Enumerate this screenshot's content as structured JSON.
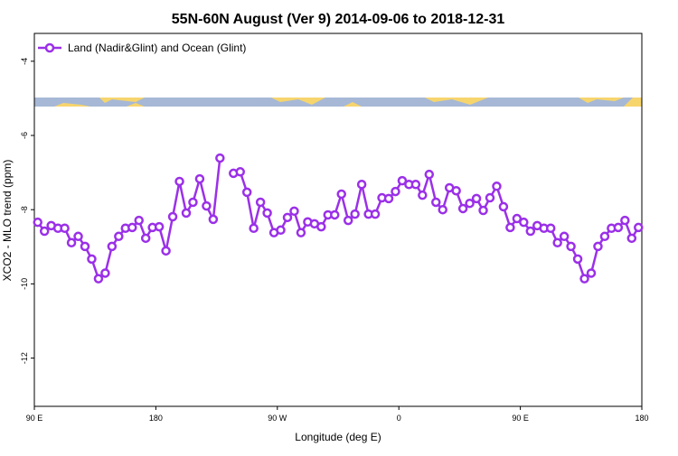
{
  "chart_data": {
    "type": "line",
    "title": "55N-60N August (Ver 9)   2014-09-06 to 2018-12-31",
    "x_label": "Longitude (deg E)",
    "y_label": "XCO2 - MLO trend (ppm)",
    "xlim": [
      90,
      540
    ],
    "ylim": [
      -13.3,
      -3.25
    ],
    "xticks": [
      {
        "value": 90,
        "label": "90 E"
      },
      {
        "value": 180,
        "label": "180"
      },
      {
        "value": 270,
        "label": "90 W"
      },
      {
        "value": 360,
        "label": "0"
      },
      {
        "value": 450,
        "label": "90 E"
      },
      {
        "value": 540,
        "label": "180"
      }
    ],
    "yticks": [
      -4,
      -6,
      -8,
      -10,
      -12
    ],
    "legend": "top-left",
    "x": [
      92.5,
      97.5,
      102.5,
      107.5,
      112.5,
      117.5,
      122.5,
      127.5,
      132.5,
      137.5,
      142.5,
      147.5,
      152.5,
      157.5,
      162.5,
      167.5,
      172.5,
      177.5,
      182.5,
      187.5,
      192.5,
      197.5,
      202.5,
      207.5,
      212.5,
      217.5,
      222.5,
      227.5,
      232.5,
      237.5,
      242.5,
      247.5,
      252.5,
      257.5,
      262.5,
      267.5,
      272.5,
      277.5,
      282.5,
      287.5,
      292.5,
      297.5,
      302.5,
      307.5,
      312.5,
      317.5,
      322.5,
      327.5,
      332.5,
      337.5,
      342.5,
      347.5,
      352.5,
      357.5,
      362.5,
      367.5,
      372.5,
      377.5,
      382.5,
      387.5,
      392.5,
      397.5,
      402.5,
      407.5,
      412.5,
      417.5,
      422.5,
      427.5,
      432.5,
      437.5,
      442.5,
      447.5,
      452.5,
      457.5,
      462.5,
      467.5,
      472.5,
      477.5,
      482.5,
      487.5,
      492.5,
      497.5,
      502.5,
      507.5,
      512.5,
      517.5,
      522.5,
      527.5,
      532.5,
      537.5
    ],
    "series": [
      {
        "name": "Land (Nadir&Glint) and Ocean (Glint)",
        "color": "#9b30e8",
        "values": [
          -8.34,
          -8.58,
          -8.43,
          -8.5,
          -8.5,
          -8.89,
          -8.72,
          -8.99,
          -9.33,
          -9.86,
          -9.71,
          -8.99,
          -8.72,
          -8.5,
          -8.48,
          -8.29,
          -8.77,
          -8.48,
          -8.46,
          -9.11,
          -8.19,
          -7.24,
          -8.09,
          -7.8,
          -7.17,
          -7.9,
          -8.26,
          -6.61,
          null,
          -7.02,
          -6.98,
          -7.53,
          -8.5,
          -7.8,
          -8.09,
          -8.62,
          -8.55,
          -8.21,
          -8.04,
          -8.62,
          -8.33,
          -8.38,
          -8.46,
          -8.14,
          -8.14,
          -7.58,
          -8.29,
          -8.12,
          -7.32,
          -8.12,
          -8.12,
          -7.68,
          -7.7,
          -7.51,
          -7.22,
          -7.32,
          -7.32,
          -7.61,
          -7.05,
          -7.8,
          -8.0,
          -7.41,
          -7.49,
          -7.97,
          -7.83,
          -7.7,
          -8.02,
          -7.68,
          -7.37,
          -7.92,
          -8.48,
          -8.24,
          -8.34,
          -8.58,
          -8.43,
          -8.5,
          -8.5,
          -8.89,
          -8.72,
          -8.99,
          -9.33,
          -9.86,
          -9.71,
          -8.99,
          -8.72,
          -8.5,
          -8.48,
          -8.29,
          -8.77,
          -8.48
        ]
      }
    ]
  }
}
